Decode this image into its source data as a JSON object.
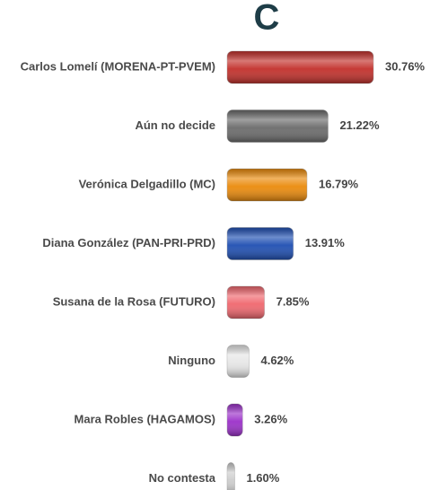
{
  "chart_data": {
    "type": "hbar",
    "title": "C",
    "categories": [
      "Carlos Lomelí (MORENA-PT-PVEM)",
      "Aún no decide",
      "Verónica Delgadillo (MC)",
      "Diana González (PAN-PRI-PRD)",
      "Susana de la Rosa (FUTURO)",
      "Ninguno",
      "Mara Robles (HAGAMOS)",
      "No contesta"
    ],
    "values": [
      30.76,
      21.22,
      16.79,
      13.91,
      7.85,
      4.62,
      3.26,
      1.6
    ],
    "value_labels": [
      "30.76%",
      "21.22%",
      "16.79%",
      "13.91%",
      "7.85%",
      "4.62%",
      "3.26%",
      "1.60%"
    ],
    "colors": [
      "#c2302b",
      "#6b6b6b",
      "#ea8a0b",
      "#1f4fb2",
      "#f0676e",
      "#e6e6e6",
      "#9b30c9",
      "#cdcdcd"
    ]
  }
}
